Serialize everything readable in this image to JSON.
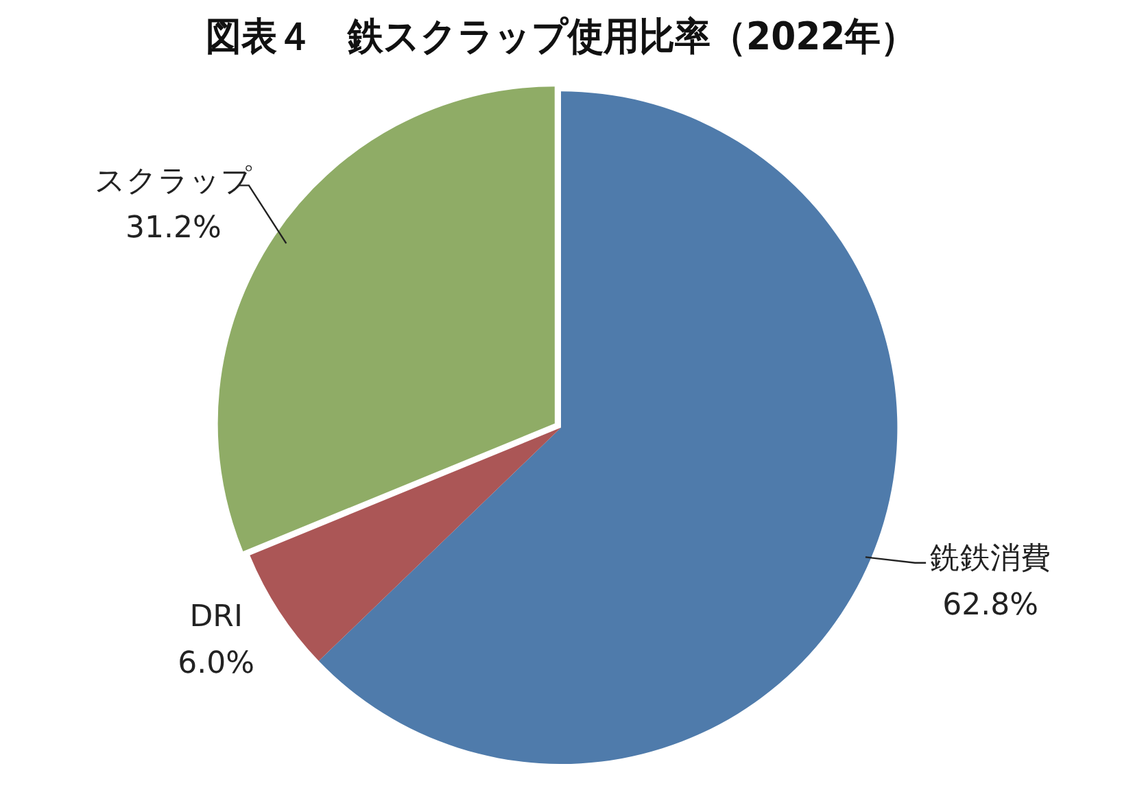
{
  "chart_data": {
    "type": "pie",
    "title": "図表４　鉄スクラップ使用比率（2022年）",
    "categories": [
      "銑鉄消費",
      "DRI",
      "スクラップ"
    ],
    "values": [
      62.8,
      6.0,
      31.2
    ],
    "colors": [
      "#4f7bab",
      "#ab5656",
      "#8fac66"
    ],
    "value_labels": [
      "62.8%",
      "6.0%",
      "31.2%"
    ],
    "legend": false
  }
}
